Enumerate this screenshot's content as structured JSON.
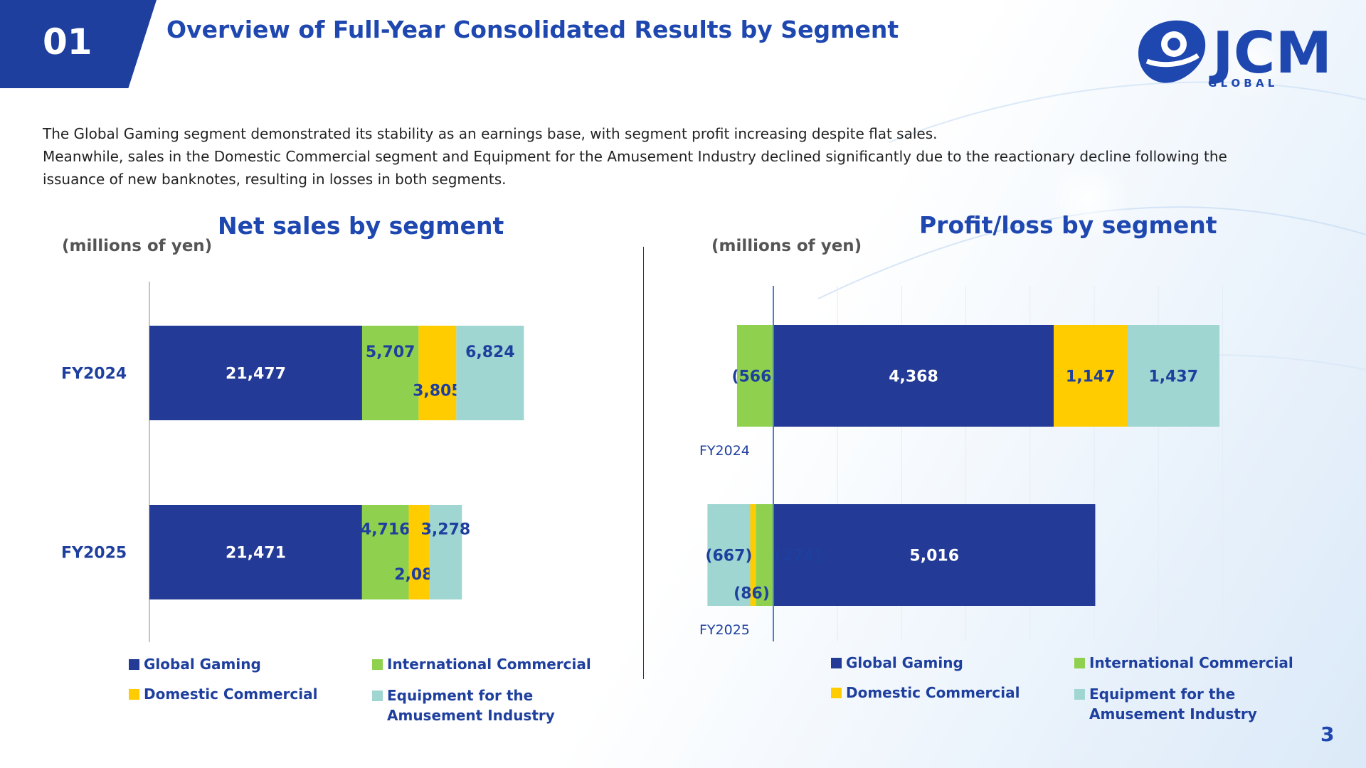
{
  "header": {
    "badge": "01",
    "title": "Overview of Full-Year Consolidated Results by Segment",
    "logo_text": "JCM",
    "logo_sub": "G L O B A L"
  },
  "description": [
    "The Global Gaming segment demonstrated its stability as an earnings base, with segment profit increasing despite flat sales.",
    "Meanwhile, sales in the Domestic Commercial segment and Equipment for the Amusement Industry declined significantly due to the reactionary decline following the",
    "issuance of new banknotes, resulting in losses in both segments."
  ],
  "colors": {
    "global_gaming": "#233a96",
    "international_commercial": "#8fd14f",
    "domestic_commercial": "#ffcc00",
    "amusement": "#9fd6d1"
  },
  "chart_data": [
    {
      "type": "bar",
      "orientation": "horizontal",
      "stacked": true,
      "title": "Net sales by segment",
      "unit_label": "(millions of yen)",
      "categories": [
        "FY2024",
        "FY2025"
      ],
      "series": [
        {
          "name": "Global Gaming",
          "values": [
            21477,
            21471
          ],
          "labels": [
            "21,477",
            "21,471"
          ]
        },
        {
          "name": "International Commercial",
          "values": [
            5707,
            4716
          ],
          "labels": [
            "5,707",
            "4,716"
          ]
        },
        {
          "name": "Domestic Commercial",
          "values": [
            3805,
            2089
          ],
          "labels": [
            "3,805",
            "2,089"
          ]
        },
        {
          "name": "Equipment for the Amusement Industry",
          "values": [
            6824,
            3278
          ],
          "labels": [
            "6,824",
            "3,278"
          ]
        }
      ],
      "xlim": [
        0,
        40000
      ],
      "grid": false,
      "legend_placement": "bottom"
    },
    {
      "type": "bar",
      "orientation": "horizontal",
      "stacked": true,
      "diverging": true,
      "title": "Profit/loss by segment",
      "unit_label": "(millions of yen)",
      "categories": [
        "FY2024",
        "FY2025"
      ],
      "series": [
        {
          "name": "Global Gaming",
          "values": [
            4368,
            5016
          ],
          "labels": [
            "4,368",
            "5,016"
          ]
        },
        {
          "name": "International Commercial",
          "values": [
            -566,
            -274
          ],
          "labels": [
            "(566)",
            "(274)"
          ]
        },
        {
          "name": "Domestic Commercial",
          "values": [
            1147,
            -86
          ],
          "labels": [
            "1,147",
            "(86)"
          ]
        },
        {
          "name": "Equipment for the Amusement Industry",
          "values": [
            1437,
            -667
          ],
          "labels": [
            "1,437",
            "(667)"
          ]
        }
      ],
      "xlim": [
        -1000,
        7000
      ],
      "grid": true,
      "legend_placement": "bottom"
    }
  ],
  "legend_lines": {
    "global": "Global Gaming",
    "intl": "International Commercial",
    "domestic": "Domestic Commercial",
    "amuse_1": "Equipment for the",
    "amuse_2": "Amusement Industry"
  },
  "page_number": "3"
}
